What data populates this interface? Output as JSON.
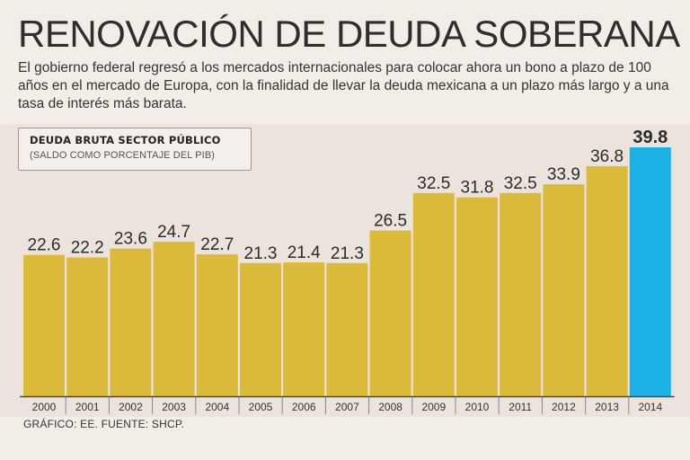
{
  "header": {
    "title": "RENOVACIÓN DE DEUDA SOBERANA",
    "subtitle": "El gobierno federal regresó a los mercados internacionales para colocar ahora un bono a plazo de 100 años en el mercado de Europa, con la finalidad de llevar la deuda mexicana a un plazo más largo y a una tasa de interés más barata."
  },
  "legend": {
    "title": "DEUDA BRUTA SECTOR PÚBLICO",
    "subtitle": "(SALDO COMO PORCENTAJE DEL PIB)"
  },
  "footer": {
    "source": "GRÁFICO: EE. FUENTE: SHCP."
  },
  "colors": {
    "bar": "#dcba3c",
    "highlight": "#1cb2e6",
    "axis": "#4a4a4a",
    "label": "#2b2b2b"
  },
  "chart_data": {
    "type": "bar",
    "title": "DEUDA BRUTA SECTOR PÚBLICO",
    "subtitle": "(SALDO COMO PORCENTAJE DEL PIB)",
    "categories": [
      "2000",
      "2001",
      "2002",
      "2003",
      "2004",
      "2005",
      "2006",
      "2007",
      "2008",
      "2009",
      "2010",
      "2011",
      "2012",
      "2013",
      "2014"
    ],
    "values": [
      22.6,
      22.2,
      23.6,
      24.7,
      22.7,
      21.3,
      21.4,
      21.3,
      26.5,
      32.5,
      31.8,
      32.5,
      33.9,
      36.8,
      39.8
    ],
    "value_labels": [
      "22.6",
      "22.2",
      "23.6",
      "24.7",
      "22.7",
      "21.3",
      "21.4",
      "21.3",
      "26.5",
      "32.5",
      "31.8",
      "32.5",
      "33.9",
      "36.8",
      "39.8"
    ],
    "highlight_category": "2014",
    "xlabel": "",
    "ylabel": "",
    "ylim": [
      0,
      39.8
    ],
    "grid": false
  }
}
